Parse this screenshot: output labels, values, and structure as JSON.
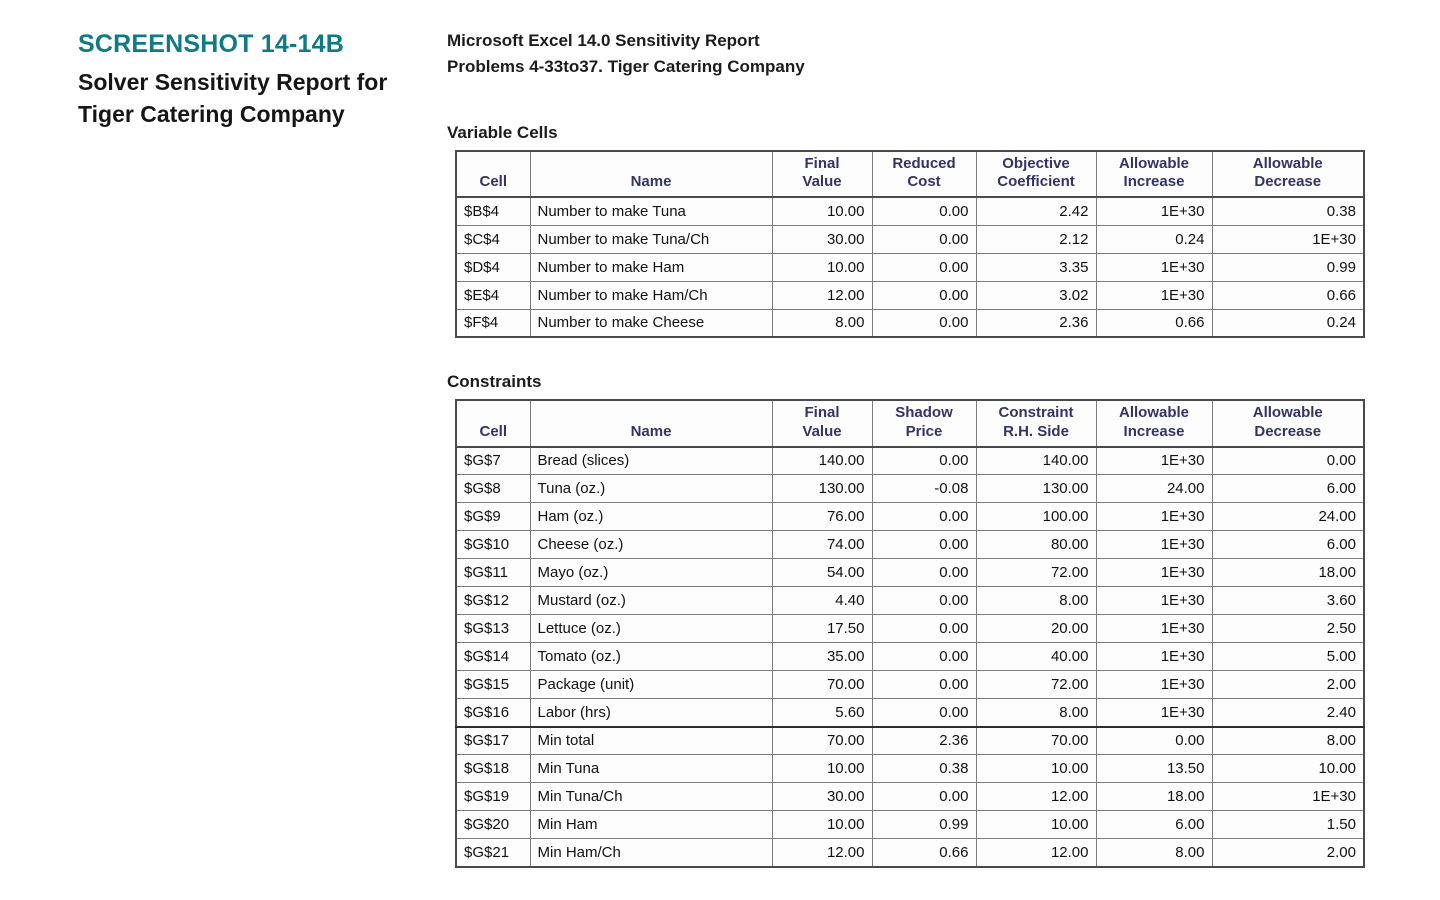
{
  "caption": {
    "tag": "SCREENSHOT 14-14B",
    "title": "Solver Sensitivity Report for Tiger Catering Company"
  },
  "report_header": {
    "line1": "Microsoft Excel 14.0 Sensitivity Report",
    "line2": "Problems 4-33to37. Tiger Catering Company"
  },
  "colors": {
    "caption_tag_teal": "#0f7b84",
    "table_header_navy": "#333366",
    "body_text": "#1a1a1a"
  },
  "variable_cells": {
    "section_label": "Variable Cells",
    "headers": [
      "Cell",
      "Name",
      "Final\nValue",
      "Reduced\nCost",
      "Objective\nCoefficient",
      "Allowable\nIncrease",
      "Allowable\nDecrease"
    ],
    "rows": [
      [
        "$B$4",
        "Number to make Tuna",
        "10.00",
        "0.00",
        "2.42",
        "1E+30",
        "0.38"
      ],
      [
        "$C$4",
        "Number to make Tuna/Ch",
        "30.00",
        "0.00",
        "2.12",
        "0.24",
        "1E+30"
      ],
      [
        "$D$4",
        "Number to make Ham",
        "10.00",
        "0.00",
        "3.35",
        "1E+30",
        "0.99"
      ],
      [
        "$E$4",
        "Number to make Ham/Ch",
        "12.00",
        "0.00",
        "3.02",
        "1E+30",
        "0.66"
      ],
      [
        "$F$4",
        "Number to make Cheese",
        "8.00",
        "0.00",
        "2.36",
        "0.66",
        "0.24"
      ]
    ]
  },
  "constraints": {
    "section_label": "Constraints",
    "headers": [
      "Cell",
      "Name",
      "Final\nValue",
      "Shadow\nPrice",
      "Constraint\nR.H. Side",
      "Allowable\nIncrease",
      "Allowable\nDecrease"
    ],
    "rows": [
      [
        "$G$7",
        "Bread (slices)",
        "140.00",
        "0.00",
        "140.00",
        "1E+30",
        "0.00"
      ],
      [
        "$G$8",
        "Tuna (oz.)",
        "130.00",
        "-0.08",
        "130.00",
        "24.00",
        "6.00"
      ],
      [
        "$G$9",
        "Ham (oz.)",
        "76.00",
        "0.00",
        "100.00",
        "1E+30",
        "24.00"
      ],
      [
        "$G$10",
        "Cheese (oz.)",
        "74.00",
        "0.00",
        "80.00",
        "1E+30",
        "6.00"
      ],
      [
        "$G$11",
        "Mayo (oz.)",
        "54.00",
        "0.00",
        "72.00",
        "1E+30",
        "18.00"
      ],
      [
        "$G$12",
        "Mustard (oz.)",
        "4.40",
        "0.00",
        "8.00",
        "1E+30",
        "3.60"
      ],
      [
        "$G$13",
        "Lettuce (oz.)",
        "17.50",
        "0.00",
        "20.00",
        "1E+30",
        "2.50"
      ],
      [
        "$G$14",
        "Tomato (oz.)",
        "35.00",
        "0.00",
        "40.00",
        "1E+30",
        "5.00"
      ],
      [
        "$G$15",
        "Package (unit)",
        "70.00",
        "0.00",
        "72.00",
        "1E+30",
        "2.00"
      ],
      [
        "$G$16",
        "Labor (hrs)",
        "5.60",
        "0.00",
        "8.00",
        "1E+30",
        "2.40"
      ],
      [
        "$G$17",
        "Min total",
        "70.00",
        "2.36",
        "70.00",
        "0.00",
        "8.00"
      ],
      [
        "$G$18",
        "Min Tuna",
        "10.00",
        "0.38",
        "10.00",
        "13.50",
        "10.00"
      ],
      [
        "$G$19",
        "Min Tuna/Ch",
        "30.00",
        "0.00",
        "12.00",
        "18.00",
        "1E+30"
      ],
      [
        "$G$20",
        "Min Ham",
        "10.00",
        "0.99",
        "10.00",
        "6.00",
        "1.50"
      ],
      [
        "$G$21",
        "Min Ham/Ch",
        "12.00",
        "0.66",
        "12.00",
        "8.00",
        "2.00"
      ]
    ]
  }
}
